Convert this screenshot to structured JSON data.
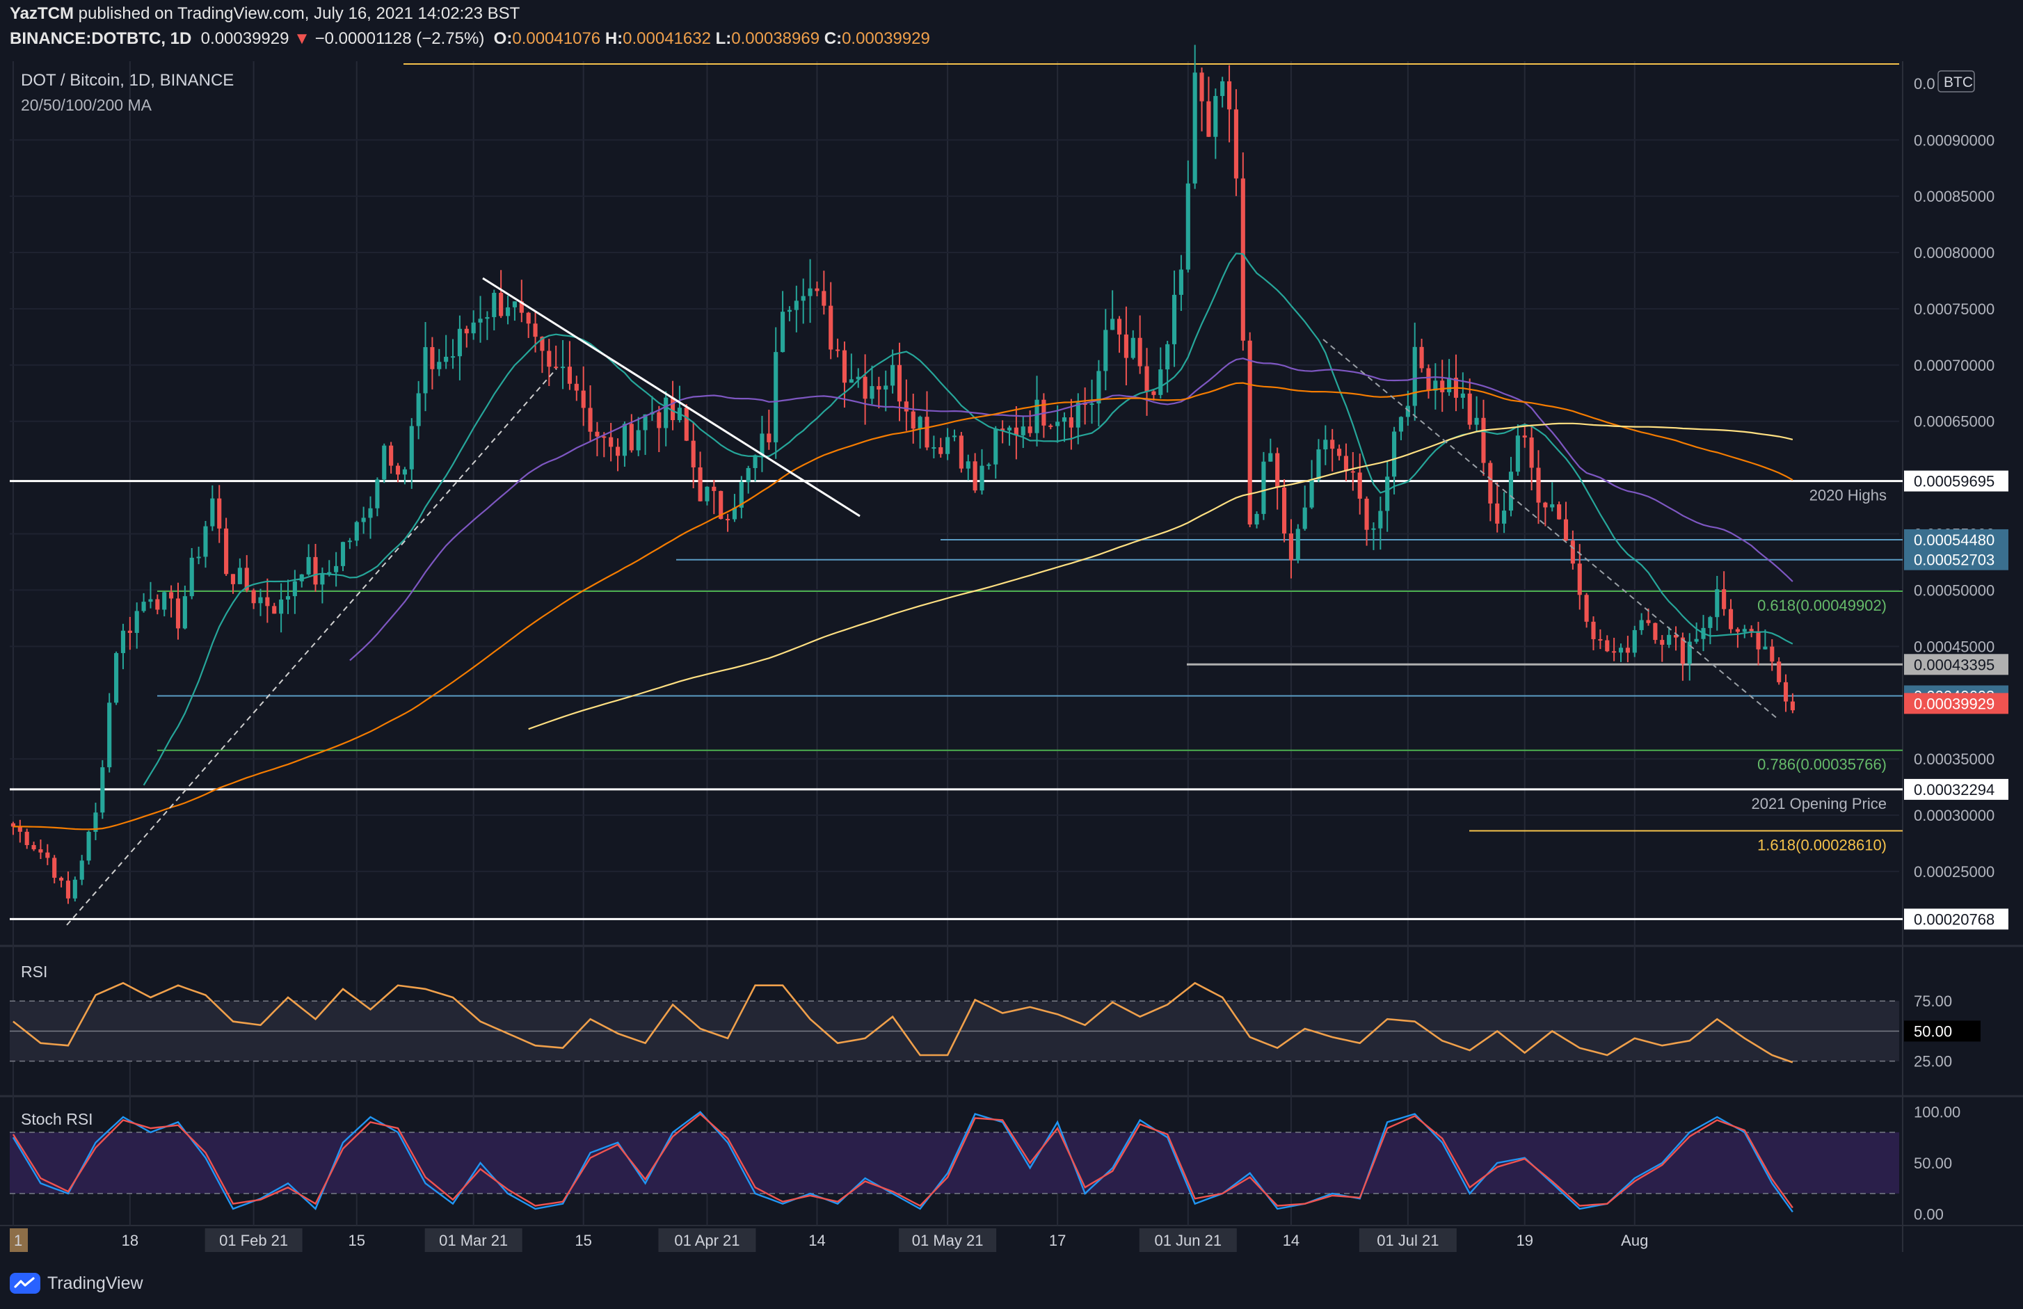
{
  "header": {
    "line1_user": "YazTCM",
    "line1_rest": " published on TradingView.com, July 16, 2021 14:02:23 BST",
    "symbol": "BINANCE:DOTBTC, 1D",
    "last": "0.00039929",
    "change": "−0.00001128 (−2.75%)",
    "o_label": "O:",
    "o_val": "0.00041076",
    "h_label": "H:",
    "h_val": "0.00041632",
    "l_label": "L:",
    "l_val": "0.00038969",
    "c_label": "C:",
    "c_val": "0.00039929"
  },
  "legend": {
    "symbol_title": "DOT / Bitcoin, 1D, BINANCE",
    "ma_title": "20/50/100/200 MA",
    "rsi_title": "RSI",
    "stoch_title": "Stoch RSI",
    "currency_badge": "BTC"
  },
  "branding": {
    "name": "TradingView",
    "logo_icon": "tradingview-logo-icon"
  },
  "colors": {
    "background": "#131722",
    "up": "#26a69a",
    "down": "#ef5350",
    "ma20": "#26a69a",
    "ma50": "#7e57c2",
    "ma100": "#f57c00",
    "ma200": "#ffe082",
    "rsi": "#f0a04b",
    "stoch_k": "#2196f3",
    "stoch_d": "#ef5350"
  },
  "chart_data": {
    "type": "candlestick",
    "timeframe": "1D",
    "y_axis_ticks": [
      "0.00090000",
      "0.00085000",
      "0.00080000",
      "0.00075000",
      "0.00070000",
      "0.00065000",
      "0.00055000",
      "0.00050000",
      "0.00045000",
      "0.00035000",
      "0.00030000",
      "0.00025000"
    ],
    "y_axis_top_partial": "0.0",
    "x_axis_ticks": [
      "1",
      "18",
      "01 Feb 21",
      "15",
      "01 Mar 21",
      "15",
      "01 Apr 21",
      "14",
      "01 May 21",
      "17",
      "01 Jun 21",
      "14",
      "01 Jul 21",
      "19",
      "Aug"
    ],
    "ylim": [
      0.00019,
      0.00097
    ],
    "levels": [
      {
        "price": 0.00059695,
        "badge": "0.00059695",
        "label": "2020 Highs",
        "color": "#ffffff"
      },
      {
        "price": 0.0005448,
        "badge": "0.00054480",
        "label": "",
        "color": "#5b9cc4"
      },
      {
        "price": 0.00052703,
        "badge": "0.00052703",
        "label": "",
        "color": "#5b9cc4"
      },
      {
        "price": 0.00049902,
        "badge": "",
        "label": "0.618(0.00049902)",
        "color": "#4caf50"
      },
      {
        "price": 0.00043395,
        "badge": "0.00043395",
        "label": "",
        "color": "#b0b0b0"
      },
      {
        "price": 0.00040603,
        "badge": "0.00040603",
        "label": "",
        "color": "#5b9cc4"
      },
      {
        "price": 0.00035766,
        "badge": "",
        "label": "0.786(0.00035766)",
        "color": "#4caf50"
      },
      {
        "price": 0.00032294,
        "badge": "0.00032294",
        "label": "2021 Opening Price",
        "color": "#ffffff"
      },
      {
        "price": 0.0002861,
        "badge": "",
        "label": "1.618(0.00028610)",
        "color": "#f5c24b"
      },
      {
        "price": 0.00020768,
        "badge": "0.00020768",
        "label": "",
        "color": "#ffffff"
      }
    ],
    "last_price": "0.00039929",
    "swing_points": [
      [
        0,
        0.00029
      ],
      [
        5,
        0.000262
      ],
      [
        8,
        0.000225
      ],
      [
        12,
        0.0003
      ],
      [
        15,
        0.00045
      ],
      [
        20,
        0.0005
      ],
      [
        24,
        0.000475
      ],
      [
        29,
        0.00058
      ],
      [
        31,
        0.00052
      ],
      [
        35,
        0.000495
      ],
      [
        39,
        0.000485
      ],
      [
        42,
        0.000525
      ],
      [
        45,
        0.000505
      ],
      [
        48,
        0.00054
      ],
      [
        51,
        0.00056
      ],
      [
        54,
        0.00063
      ],
      [
        57,
        0.00061
      ],
      [
        60,
        0.0007
      ],
      [
        64,
        0.00071
      ],
      [
        68,
        0.00075
      ],
      [
        72,
        0.00076
      ],
      [
        75,
        0.00072
      ],
      [
        78,
        0.00069
      ],
      [
        81,
        0.0007
      ],
      [
        84,
        0.00065
      ],
      [
        87,
        0.00062
      ],
      [
        90,
        0.00064
      ],
      [
        93,
        0.00066
      ],
      [
        97,
        0.00065
      ],
      [
        100,
        0.00059
      ],
      [
        103,
        0.00057
      ],
      [
        106,
        0.00059
      ],
      [
        110,
        0.00064
      ],
      [
        112,
        0.00076
      ],
      [
        115,
        0.00078
      ],
      [
        118,
        0.00074
      ],
      [
        121,
        0.0007
      ],
      [
        124,
        0.000685
      ],
      [
        128,
        0.00069
      ],
      [
        131,
        0.00066
      ],
      [
        134,
        0.00063
      ],
      [
        137,
        0.00064
      ],
      [
        140,
        0.00059
      ],
      [
        143,
        0.00063
      ],
      [
        147,
        0.00065
      ],
      [
        150,
        0.00066
      ],
      [
        154,
        0.00066
      ],
      [
        157,
        0.00067
      ],
      [
        160,
        0.00074
      ],
      [
        163,
        0.00071
      ],
      [
        166,
        0.00066
      ],
      [
        168,
        0.00072
      ],
      [
        170,
        0.00077
      ],
      [
        172,
        0.00096
      ],
      [
        174,
        0.00089
      ],
      [
        176,
        0.00095
      ],
      [
        178,
        0.00086
      ],
      [
        180,
        0.00056
      ],
      [
        183,
        0.00062
      ],
      [
        186,
        0.00052
      ],
      [
        189,
        0.0006
      ],
      [
        192,
        0.00064
      ],
      [
        195,
        0.00059
      ],
      [
        198,
        0.00055
      ],
      [
        201,
        0.00064
      ],
      [
        204,
        0.0007
      ],
      [
        207,
        0.00069
      ],
      [
        210,
        0.00068
      ],
      [
        213,
        0.00064
      ],
      [
        216,
        0.00055
      ],
      [
        219,
        0.00064
      ],
      [
        222,
        0.00059
      ],
      [
        225,
        0.00057
      ],
      [
        228,
        0.0005
      ],
      [
        231,
        0.00045
      ],
      [
        234,
        0.00044
      ],
      [
        237,
        0.00048
      ],
      [
        240,
        0.00046
      ],
      [
        243,
        0.000445
      ],
      [
        246,
        0.00047
      ],
      [
        248,
        0.000495
      ],
      [
        251,
        0.00046
      ],
      [
        254,
        0.00045
      ],
      [
        257,
        0.00042
      ],
      [
        259,
        0.000399
      ]
    ],
    "rsi": {
      "levels": [
        "75.00",
        "50.00",
        "25.00"
      ],
      "highlight": "50.00",
      "points": [
        [
          0,
          58
        ],
        [
          4,
          40
        ],
        [
          8,
          38
        ],
        [
          12,
          80
        ],
        [
          16,
          90
        ],
        [
          20,
          78
        ],
        [
          24,
          88
        ],
        [
          28,
          80
        ],
        [
          32,
          58
        ],
        [
          36,
          55
        ],
        [
          40,
          78
        ],
        [
          44,
          60
        ],
        [
          48,
          85
        ],
        [
          52,
          68
        ],
        [
          56,
          88
        ],
        [
          60,
          85
        ],
        [
          64,
          78
        ],
        [
          68,
          58
        ],
        [
          72,
          48
        ],
        [
          76,
          38
        ],
        [
          80,
          36
        ],
        [
          84,
          60
        ],
        [
          88,
          48
        ],
        [
          92,
          40
        ],
        [
          96,
          72
        ],
        [
          100,
          52
        ],
        [
          104,
          44
        ],
        [
          108,
          88
        ],
        [
          112,
          88
        ],
        [
          116,
          60
        ],
        [
          120,
          40
        ],
        [
          124,
          44
        ],
        [
          128,
          62
        ],
        [
          132,
          30
        ],
        [
          136,
          30
        ],
        [
          140,
          76
        ],
        [
          144,
          65
        ],
        [
          148,
          70
        ],
        [
          152,
          64
        ],
        [
          156,
          55
        ],
        [
          160,
          74
        ],
        [
          164,
          62
        ],
        [
          168,
          72
        ],
        [
          172,
          90
        ],
        [
          176,
          78
        ],
        [
          180,
          45
        ],
        [
          184,
          36
        ],
        [
          188,
          52
        ],
        [
          192,
          45
        ],
        [
          196,
          40
        ],
        [
          200,
          60
        ],
        [
          204,
          58
        ],
        [
          208,
          42
        ],
        [
          212,
          34
        ],
        [
          216,
          50
        ],
        [
          220,
          32
        ],
        [
          224,
          50
        ],
        [
          228,
          36
        ],
        [
          232,
          30
        ],
        [
          236,
          44
        ],
        [
          240,
          38
        ],
        [
          244,
          42
        ],
        [
          248,
          60
        ],
        [
          252,
          44
        ],
        [
          256,
          30
        ],
        [
          259,
          24
        ]
      ]
    },
    "stoch_rsi": {
      "levels": [
        "100.00",
        "50.00",
        "0.00"
      ],
      "k": [
        [
          0,
          75
        ],
        [
          4,
          30
        ],
        [
          8,
          20
        ],
        [
          12,
          70
        ],
        [
          16,
          95
        ],
        [
          20,
          80
        ],
        [
          24,
          90
        ],
        [
          28,
          55
        ],
        [
          32,
          5
        ],
        [
          36,
          15
        ],
        [
          40,
          30
        ],
        [
          44,
          5
        ],
        [
          48,
          70
        ],
        [
          52,
          95
        ],
        [
          56,
          80
        ],
        [
          60,
          30
        ],
        [
          64,
          10
        ],
        [
          68,
          50
        ],
        [
          72,
          20
        ],
        [
          76,
          5
        ],
        [
          80,
          10
        ],
        [
          84,
          60
        ],
        [
          88,
          70
        ],
        [
          92,
          30
        ],
        [
          96,
          80
        ],
        [
          100,
          100
        ],
        [
          104,
          70
        ],
        [
          108,
          20
        ],
        [
          112,
          10
        ],
        [
          116,
          20
        ],
        [
          120,
          10
        ],
        [
          124,
          35
        ],
        [
          128,
          20
        ],
        [
          132,
          5
        ],
        [
          136,
          40
        ],
        [
          140,
          98
        ],
        [
          144,
          90
        ],
        [
          148,
          45
        ],
        [
          152,
          90
        ],
        [
          156,
          20
        ],
        [
          160,
          45
        ],
        [
          164,
          92
        ],
        [
          168,
          75
        ],
        [
          172,
          10
        ],
        [
          176,
          20
        ],
        [
          180,
          40
        ],
        [
          184,
          5
        ],
        [
          188,
          10
        ],
        [
          192,
          20
        ],
        [
          196,
          15
        ],
        [
          200,
          90
        ],
        [
          204,
          98
        ],
        [
          208,
          70
        ],
        [
          212,
          20
        ],
        [
          216,
          50
        ],
        [
          220,
          55
        ],
        [
          224,
          30
        ],
        [
          228,
          5
        ],
        [
          232,
          10
        ],
        [
          236,
          35
        ],
        [
          240,
          50
        ],
        [
          244,
          80
        ],
        [
          248,
          95
        ],
        [
          252,
          80
        ],
        [
          256,
          30
        ],
        [
          259,
          2
        ]
      ],
      "d": [
        [
          0,
          78
        ],
        [
          4,
          35
        ],
        [
          8,
          22
        ],
        [
          12,
          65
        ],
        [
          16,
          92
        ],
        [
          20,
          84
        ],
        [
          24,
          87
        ],
        [
          28,
          60
        ],
        [
          32,
          10
        ],
        [
          36,
          14
        ],
        [
          40,
          26
        ],
        [
          44,
          10
        ],
        [
          48,
          64
        ],
        [
          52,
          90
        ],
        [
          56,
          84
        ],
        [
          60,
          36
        ],
        [
          64,
          14
        ],
        [
          68,
          44
        ],
        [
          72,
          24
        ],
        [
          76,
          8
        ],
        [
          80,
          12
        ],
        [
          84,
          55
        ],
        [
          88,
          68
        ],
        [
          92,
          34
        ],
        [
          96,
          76
        ],
        [
          100,
          98
        ],
        [
          104,
          74
        ],
        [
          108,
          26
        ],
        [
          112,
          12
        ],
        [
          116,
          18
        ],
        [
          120,
          12
        ],
        [
          124,
          32
        ],
        [
          128,
          22
        ],
        [
          132,
          8
        ],
        [
          136,
          36
        ],
        [
          140,
          94
        ],
        [
          144,
          92
        ],
        [
          148,
          50
        ],
        [
          152,
          84
        ],
        [
          156,
          26
        ],
        [
          160,
          42
        ],
        [
          164,
          88
        ],
        [
          168,
          78
        ],
        [
          172,
          15
        ],
        [
          176,
          20
        ],
        [
          180,
          36
        ],
        [
          184,
          8
        ],
        [
          188,
          10
        ],
        [
          192,
          18
        ],
        [
          196,
          16
        ],
        [
          200,
          84
        ],
        [
          204,
          96
        ],
        [
          208,
          74
        ],
        [
          212,
          26
        ],
        [
          216,
          46
        ],
        [
          220,
          54
        ],
        [
          224,
          32
        ],
        [
          228,
          8
        ],
        [
          232,
          10
        ],
        [
          236,
          32
        ],
        [
          240,
          48
        ],
        [
          244,
          76
        ],
        [
          248,
          92
        ],
        [
          252,
          82
        ],
        [
          256,
          34
        ],
        [
          259,
          6
        ]
      ]
    }
  }
}
